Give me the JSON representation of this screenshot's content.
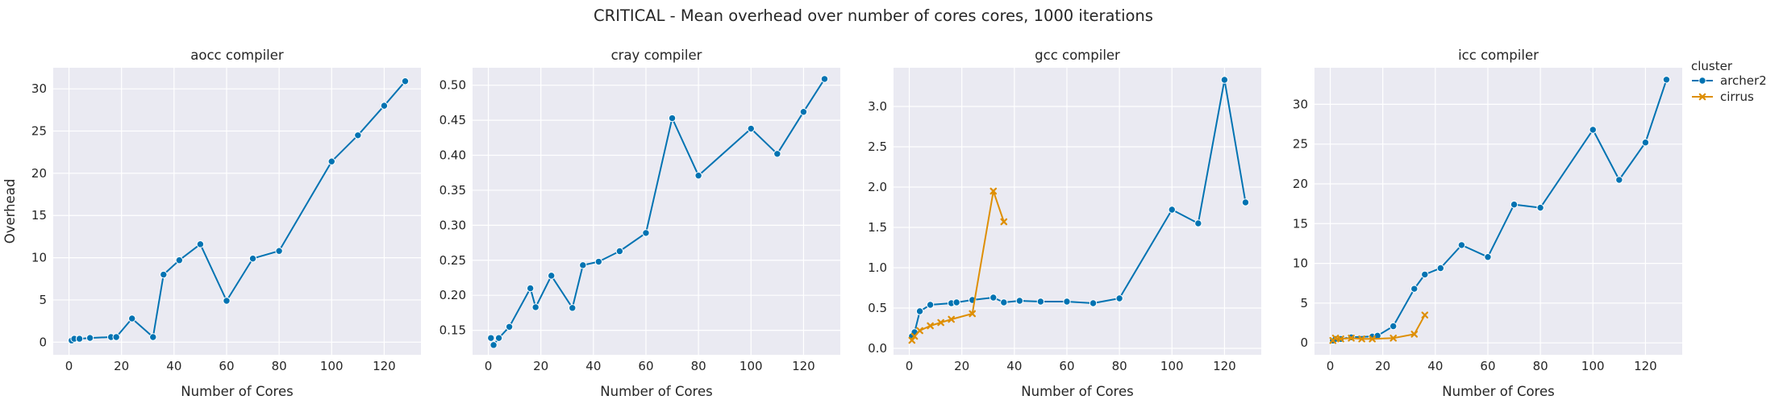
{
  "suptitle": "CRITICAL - Mean overhead over number of cores cores, 1000 iterations",
  "ylabel_shared": "Overhead",
  "legend": {
    "title": "cluster",
    "entries": [
      {
        "name": "archer2",
        "color": "#0173b2",
        "marker": "circle"
      },
      {
        "name": "cirrus",
        "color": "#de8f05",
        "marker": "x"
      }
    ]
  },
  "colors": {
    "background": "#eaeaf2",
    "grid": "#ffffff",
    "archer2": "#0173b2",
    "cirrus": "#de8f05"
  },
  "chart_data": [
    {
      "type": "line",
      "title": "aocc compiler",
      "xlabel": "Number of Cores",
      "ylabel": "Overhead",
      "xlim": [
        -6,
        134
      ],
      "ylim": [
        -1.5,
        32.5
      ],
      "xticks": [
        0,
        20,
        40,
        60,
        80,
        100,
        120
      ],
      "yticks": [
        0,
        5,
        10,
        15,
        20,
        25,
        30
      ],
      "grid": true,
      "series": [
        {
          "name": "archer2",
          "x": [
            1,
            2,
            4,
            8,
            16,
            18,
            24,
            32,
            36,
            42,
            50,
            60,
            70,
            80,
            100,
            110,
            120,
            128
          ],
          "y": [
            0.2,
            0.4,
            0.4,
            0.5,
            0.6,
            0.6,
            2.8,
            0.6,
            8.0,
            9.7,
            11.6,
            4.9,
            9.9,
            10.8,
            21.4,
            24.5,
            28.0,
            30.9
          ]
        }
      ]
    },
    {
      "type": "line",
      "title": "cray compiler",
      "xlim": [
        -6,
        134
      ],
      "ylim": [
        0.115,
        0.525
      ],
      "xticks": [
        0,
        20,
        40,
        60,
        80,
        100,
        120
      ],
      "yticks": [
        0.15,
        0.2,
        0.25,
        0.3,
        0.35,
        0.4,
        0.45,
        0.5
      ],
      "grid": true,
      "series": [
        {
          "name": "archer2",
          "x": [
            1,
            2,
            4,
            8,
            16,
            18,
            24,
            32,
            36,
            42,
            50,
            60,
            70,
            80,
            100,
            110,
            120,
            128
          ],
          "y": [
            0.139,
            0.129,
            0.139,
            0.155,
            0.21,
            0.183,
            0.228,
            0.182,
            0.243,
            0.248,
            0.263,
            0.289,
            0.453,
            0.371,
            0.438,
            0.402,
            0.462,
            0.509
          ]
        }
      ]
    },
    {
      "type": "line",
      "title": "gcc compiler",
      "xlim": [
        -6,
        134
      ],
      "ylim": [
        -0.08,
        3.48
      ],
      "xticks": [
        0,
        20,
        40,
        60,
        80,
        100,
        120
      ],
      "yticks": [
        0.0,
        0.5,
        1.0,
        1.5,
        2.0,
        2.5,
        3.0
      ],
      "grid": true,
      "series": [
        {
          "name": "archer2",
          "x": [
            1,
            2,
            4,
            8,
            16,
            18,
            24,
            32,
            36,
            42,
            50,
            60,
            70,
            80,
            100,
            110,
            120,
            128
          ],
          "y": [
            0.15,
            0.2,
            0.46,
            0.54,
            0.56,
            0.57,
            0.6,
            0.63,
            0.57,
            0.59,
            0.58,
            0.58,
            0.56,
            0.62,
            1.72,
            1.55,
            3.33,
            1.81
          ]
        },
        {
          "name": "cirrus",
          "x": [
            1,
            2,
            4,
            8,
            12,
            16,
            24,
            32,
            36
          ],
          "y": [
            0.1,
            0.15,
            0.22,
            0.28,
            0.32,
            0.36,
            0.43,
            1.95,
            1.57
          ]
        }
      ]
    },
    {
      "type": "line",
      "title": "icc compiler",
      "xlim": [
        -6,
        134
      ],
      "ylim": [
        -1.5,
        34.6
      ],
      "xticks": [
        0,
        20,
        40,
        60,
        80,
        100,
        120
      ],
      "yticks": [
        0,
        5,
        10,
        15,
        20,
        25,
        30
      ],
      "grid": true,
      "series": [
        {
          "name": "archer2",
          "x": [
            1,
            2,
            4,
            8,
            16,
            18,
            24,
            32,
            36,
            42,
            50,
            60,
            70,
            80,
            100,
            110,
            120,
            128
          ],
          "y": [
            0.3,
            0.5,
            0.5,
            0.7,
            0.8,
            0.9,
            2.1,
            6.8,
            8.6,
            9.4,
            12.3,
            10.8,
            17.4,
            17.0,
            26.8,
            20.5,
            25.2,
            33.1
          ]
        },
        {
          "name": "cirrus",
          "x": [
            1,
            2,
            4,
            8,
            12,
            16,
            24,
            32,
            36
          ],
          "y": [
            0.3,
            0.6,
            0.5,
            0.6,
            0.5,
            0.5,
            0.6,
            1.1,
            3.5
          ]
        }
      ]
    }
  ]
}
